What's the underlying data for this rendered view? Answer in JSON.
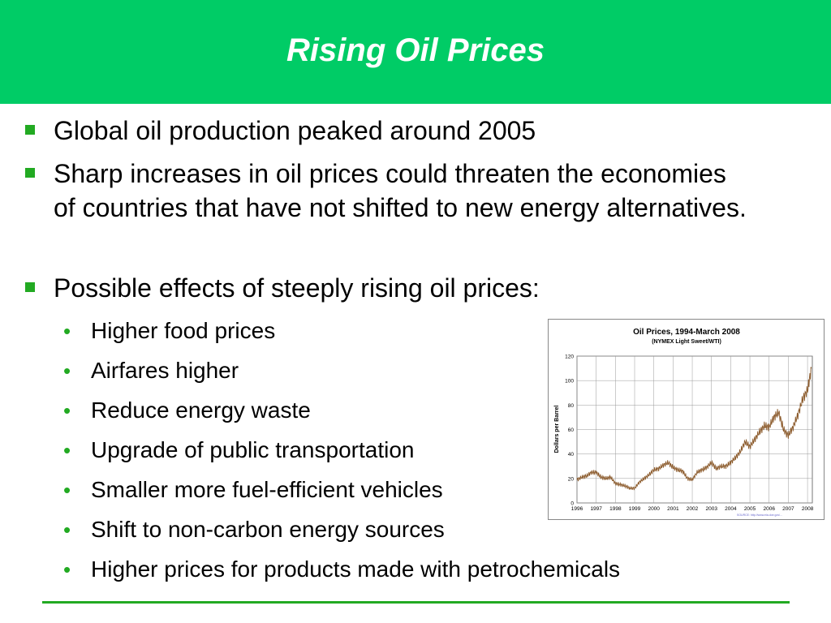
{
  "slide": {
    "title": "Rising Oil Prices",
    "accent_color": "#00cc66",
    "bullet_color": "#22aa22",
    "bullets": [
      "Global oil production peaked around 2005",
      "Sharp increases in oil prices could threaten the economies of countries that have not shifted to new energy alternatives.",
      "Possible effects of steeply rising oil prices:"
    ],
    "sub_bullets": [
      "Higher food prices",
      "Airfares higher",
      "Reduce energy waste",
      "Upgrade of public transportation",
      "Smaller more fuel-efficient vehicles",
      "Shift to non-carbon energy sources",
      "Higher prices for products made with petrochemicals"
    ],
    "sub_bullet_glyph": "•"
  },
  "chart_data": {
    "type": "line",
    "title": "Oil Prices, 1994-March 2008",
    "subtitle": "(NYMEX Light Sweet/WTI)",
    "ylabel": "Dollars per Barrel",
    "xlabel": "",
    "x_ticks": [
      "1996",
      "1997",
      "1998",
      "1999",
      "2000",
      "2001",
      "2002",
      "2003",
      "2004",
      "2005",
      "2006",
      "2007",
      "2008"
    ],
    "y_ticks": [
      0,
      20,
      40,
      60,
      80,
      100,
      120
    ],
    "xlim": [
      1996,
      2008.25
    ],
    "ylim": [
      0,
      120
    ],
    "grid": true,
    "line_color": "#8b5a2b",
    "series": [
      {
        "x": [
          1996.0,
          1996.25,
          1996.5,
          1996.75,
          1997.0,
          1997.25,
          1997.5,
          1997.75,
          1998.0,
          1998.25,
          1998.5,
          1998.75,
          1999.0,
          1999.25,
          1999.5,
          1999.75,
          2000.0,
          2000.25,
          2000.5,
          2000.75,
          2001.0,
          2001.25,
          2001.5,
          2001.75,
          2002.0,
          2002.25,
          2002.5,
          2002.75,
          2003.0,
          2003.25,
          2003.5,
          2003.75,
          2004.0,
          2004.25,
          2004.5,
          2004.75,
          2005.0,
          2005.25,
          2005.5,
          2005.75,
          2006.0,
          2006.25,
          2006.5,
          2006.75,
          2007.0,
          2007.25,
          2007.5,
          2007.75,
          2008.0,
          2008.2
        ],
        "y": [
          19,
          21,
          22,
          25,
          25,
          21,
          20,
          21,
          16,
          15,
          14,
          12,
          12,
          17,
          20,
          23,
          27,
          28,
          31,
          33,
          29,
          27,
          26,
          20,
          19,
          25,
          27,
          29,
          33,
          28,
          30,
          30,
          33,
          37,
          42,
          50,
          46,
          52,
          58,
          63,
          62,
          70,
          74,
          60,
          55,
          62,
          72,
          85,
          92,
          110
        ]
      }
    ],
    "source_note": "SOURCE: http://www.eia.doe.gov/..."
  }
}
